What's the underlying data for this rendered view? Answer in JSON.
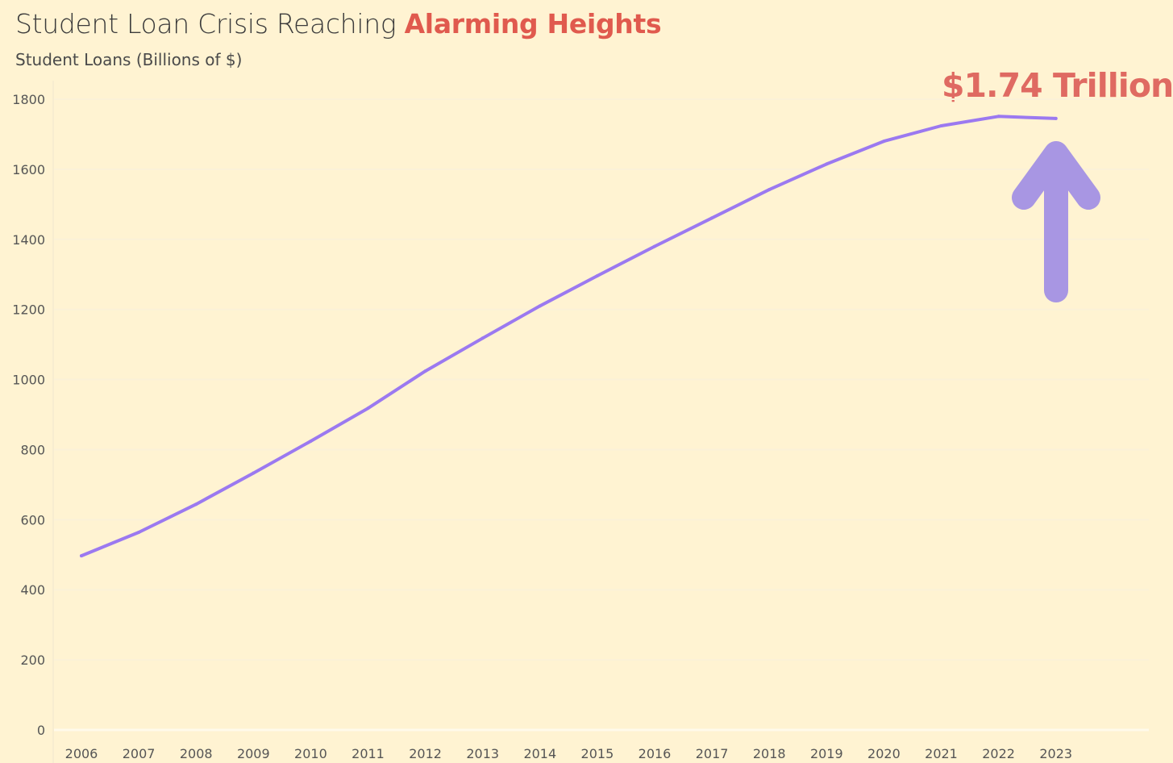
{
  "header": {
    "title_main": "Student Loan Crisis Reaching",
    "title_accent": "Alarming Heights",
    "subtitle": "Student Loans (Billions of $)"
  },
  "annotation": {
    "text": "$1.74 Trillion",
    "arrow_icon": "up-arrow-icon"
  },
  "colors": {
    "background": "#fff3d2",
    "line": "#9b79f0",
    "arrow": "#a896e3",
    "accent": "#e05a4e",
    "annotation": "#df6a62"
  },
  "chart_data": {
    "type": "line",
    "title": "Student Loan Crisis Reaching Alarming Heights",
    "subtitle": "Student Loans (Billions of $)",
    "xlabel": "",
    "ylabel": "",
    "categories": [
      "2006",
      "2007",
      "2008",
      "2009",
      "2010",
      "2011",
      "2012",
      "2013",
      "2014",
      "2015",
      "2016",
      "2017",
      "2018",
      "2019",
      "2020",
      "2021",
      "2022",
      "2023"
    ],
    "values": [
      497,
      564,
      644,
      733,
      824,
      918,
      1024,
      1118,
      1210,
      1296,
      1380,
      1461,
      1542,
      1615,
      1680,
      1724,
      1751,
      1745
    ],
    "ylim": [
      0,
      1800
    ],
    "yticks": [
      0,
      200,
      400,
      600,
      800,
      1000,
      1200,
      1400,
      1600,
      1800
    ],
    "grid": true,
    "annotation": "$1.74 Trillion"
  }
}
